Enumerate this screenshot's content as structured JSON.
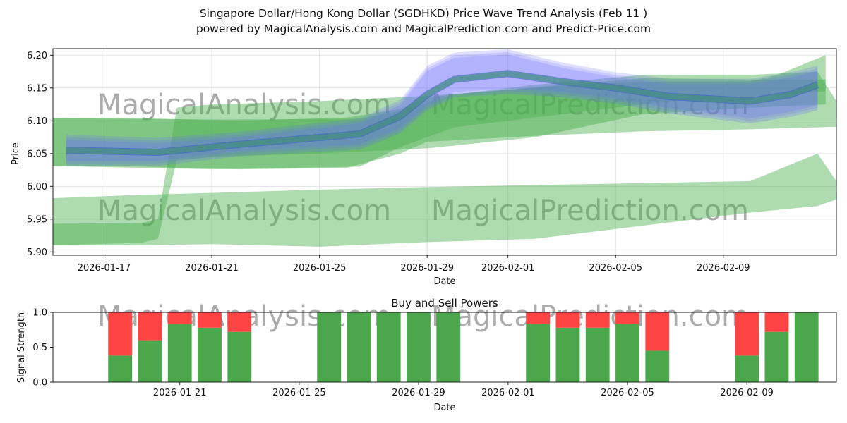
{
  "page": {
    "title_line1": "Singapore Dollar/Hong Kong Dollar (SGDHKD) Price Wave Trend Analysis (Feb 11 )",
    "title_line2": "powered by MagicalAnalysis.com and MagicalPrediction.com and Predict-Price.com",
    "watermarks": [
      "MagicalAnalysis.com",
      "MagicalPrediction.com"
    ]
  },
  "colors": {
    "band": "#4caf50",
    "blue_band": "#6a6aff",
    "blue_line": "#3355cc",
    "buy": "#4ca64c",
    "sell": "#ff4444",
    "grid": "#e3e3e3"
  },
  "chart_data": [
    {
      "type": "area",
      "title": "",
      "xlabel": "Date",
      "ylabel": "Price",
      "ylim": [
        5.895,
        6.21
      ],
      "x_range_days_from_2026_01_17": [
        -1.9,
        27.2
      ],
      "yticks": [
        5.9,
        5.95,
        6.0,
        6.05,
        6.1,
        6.15,
        6.2
      ],
      "ytick_labels": [
        "5.90",
        "5.95",
        "6.00",
        "6.05",
        "6.10",
        "6.15",
        "6.20"
      ],
      "xticks": [
        0,
        4,
        8,
        12,
        15,
        19,
        23
      ],
      "xtick_labels": [
        "2026-01-17",
        "2026-01-21",
        "2026-01-25",
        "2026-01-29",
        "2026-02-01",
        "2026-02-05",
        "2026-02-09"
      ],
      "grid": true,
      "green_bands": [
        {
          "name": "wave-upper",
          "x": [
            -1.9,
            1.3,
            2.3,
            5,
            9,
            11,
            12,
            16,
            20,
            24,
            26.5,
            27.2
          ],
          "upper": [
            6.104,
            6.104,
            6.103,
            6.1,
            6.105,
            6.118,
            6.135,
            6.155,
            6.17,
            6.17,
            6.175,
            6.13
          ],
          "lower": [
            6.031,
            6.03,
            6.029,
            6.026,
            6.028,
            6.05,
            6.068,
            6.077,
            6.084,
            6.087,
            6.09,
            6.091
          ]
        },
        {
          "name": "wave-lower",
          "x": [
            -1.9,
            1.3,
            4,
            8,
            12,
            16,
            20,
            24,
            26.5,
            27.2
          ],
          "upper": [
            5.982,
            5.987,
            5.99,
            5.995,
            5.999,
            6.002,
            6.005,
            6.008,
            6.05,
            6.008
          ],
          "lower": [
            5.91,
            5.91,
            5.912,
            5.908,
            5.915,
            5.92,
            5.94,
            5.96,
            5.97,
            5.98
          ]
        },
        {
          "name": "wave-transition",
          "x": [
            -1.9,
            1.4,
            2.0,
            2.7,
            4,
            8,
            12,
            16,
            20,
            24,
            26.8
          ],
          "upper": [
            5.943,
            5.944,
            5.95,
            6.12,
            6.125,
            6.13,
            6.138,
            6.15,
            6.165,
            6.163,
            6.163
          ],
          "lower": [
            5.91,
            5.914,
            5.92,
            6.04,
            6.045,
            6.05,
            6.058,
            6.075,
            6.11,
            6.12,
            6.125
          ]
        },
        {
          "name": "wave-upper-2",
          "x": [
            -1.9,
            4,
            9.5,
            11,
            13,
            17,
            21,
            24,
            25,
            26.8
          ],
          "upper": [
            6.104,
            6.102,
            6.103,
            6.115,
            6.14,
            6.155,
            6.16,
            6.16,
            6.17,
            6.2
          ],
          "lower": [
            6.031,
            6.026,
            6.03,
            6.06,
            6.09,
            6.11,
            6.13,
            6.135,
            6.14,
            6.145
          ]
        }
      ],
      "blue_band": {
        "x": [
          -1.4,
          2,
          5,
          9.5,
          11,
          12,
          13,
          15,
          17,
          19,
          21,
          24,
          25.5,
          26.5
        ],
        "upper": [
          6.075,
          6.07,
          6.079,
          6.1,
          6.128,
          6.18,
          6.2,
          6.205,
          6.185,
          6.17,
          6.16,
          6.16,
          6.17,
          6.18
        ],
        "lower": [
          6.035,
          6.035,
          6.05,
          6.06,
          6.085,
          6.12,
          6.14,
          6.145,
          6.14,
          6.13,
          6.115,
          6.1,
          6.11,
          6.12
        ]
      },
      "blue_line": {
        "x": [
          -1.4,
          2,
          5,
          9.5,
          11,
          12,
          13,
          15,
          17,
          19,
          21,
          24,
          25.5,
          26.5
        ],
        "y": [
          6.055,
          6.052,
          6.064,
          6.08,
          6.107,
          6.14,
          6.163,
          6.172,
          6.16,
          6.15,
          6.137,
          6.13,
          6.14,
          6.155
        ]
      }
    },
    {
      "type": "bar",
      "title": "Buy and Sell Powers",
      "xlabel": "Date",
      "ylabel": "Signal Strength",
      "ylim": [
        0,
        1.0
      ],
      "yticks": [
        0,
        0.5,
        1.0
      ],
      "ytick_labels": [
        "0.0",
        "0.5",
        "1.0"
      ],
      "xticks": [
        4,
        8,
        12,
        15,
        19,
        23
      ],
      "xtick_labels": [
        "2026-01-21",
        "2026-01-25",
        "2026-01-29",
        "2026-02-01",
        "2026-02-05",
        "2026-02-09"
      ],
      "x_days_from_2026_01_17": [
        2,
        3,
        4,
        5,
        6,
        9,
        10,
        11,
        12,
        13,
        16,
        17,
        18,
        19,
        20,
        23,
        24,
        25
      ],
      "series": [
        {
          "name": "Buy",
          "values": [
            0.38,
            0.6,
            0.83,
            0.78,
            0.72,
            1.0,
            1.0,
            1.0,
            1.0,
            1.0,
            0.83,
            0.78,
            0.78,
            0.83,
            0.45,
            0.38,
            0.72,
            1.0
          ]
        },
        {
          "name": "Sell",
          "values": [
            0.62,
            0.4,
            0.17,
            0.22,
            0.28,
            0.0,
            0.0,
            0.0,
            0.0,
            0.0,
            0.17,
            0.22,
            0.22,
            0.17,
            0.55,
            0.62,
            0.28,
            0.0
          ]
        }
      ]
    }
  ]
}
